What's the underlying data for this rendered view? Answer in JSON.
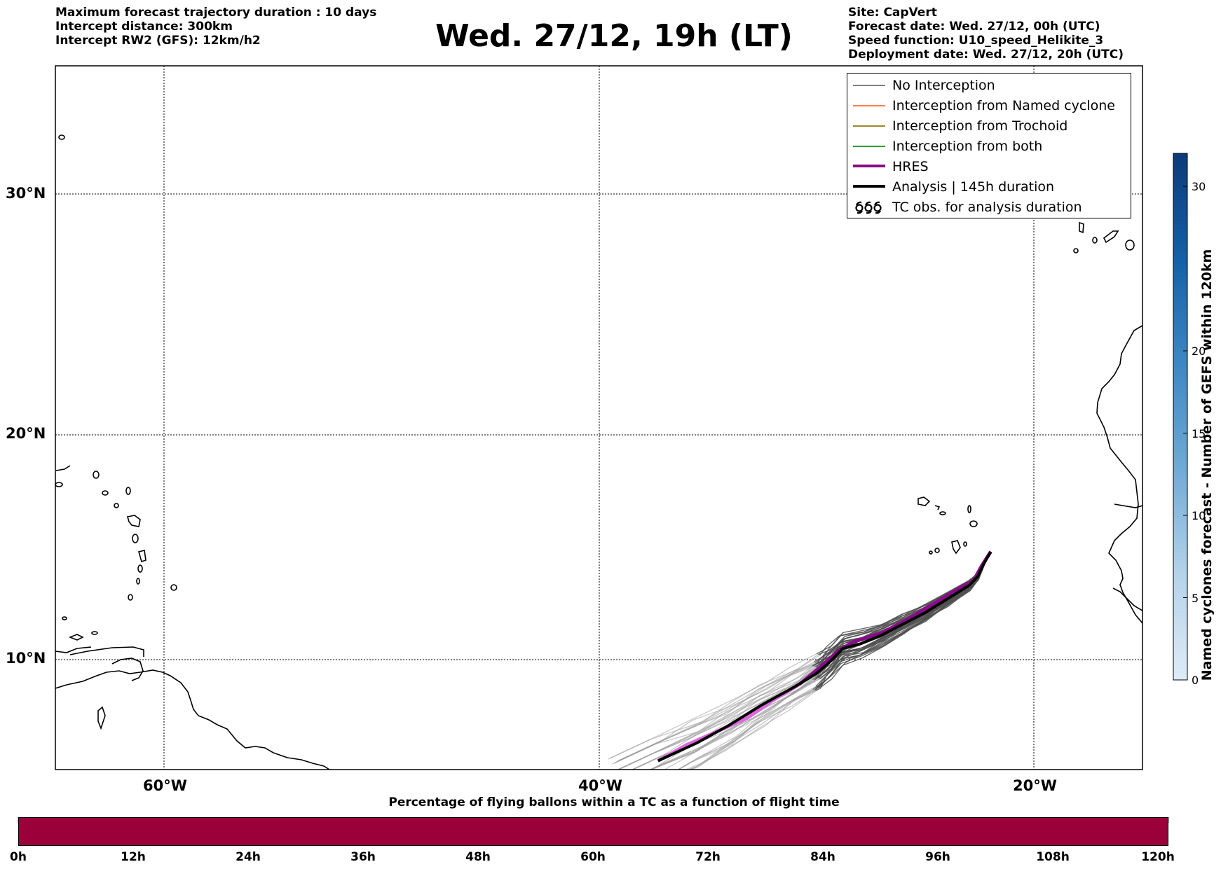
{
  "header_left": [
    "Maximum forecast trajectory duration : 10 days",
    "Intercept distance: 300km",
    "Intercept RW2 (GFS):  12km/h2"
  ],
  "title": "Wed. 27/12, 19h (LT)",
  "header_right": [
    "Site: CapVert",
    "Forecast date: Wed. 27/12, 00h (UTC)",
    "Speed function: U10_speed_Helikite_3",
    "Deployment date: Wed. 27/12, 20h (UTC)"
  ],
  "legend": [
    {
      "label": "No Interception",
      "color": "#808080",
      "kind": "thin"
    },
    {
      "label": "Interception from Named cyclone",
      "color": "#ff7f50",
      "kind": "thin"
    },
    {
      "label": "Interception from Trochoid",
      "color": "#9a8a2a",
      "kind": "thin"
    },
    {
      "label": "Interception from both",
      "color": "#2ca02c",
      "kind": "thin"
    },
    {
      "label": "HRES",
      "color": "#8b0a8b",
      "kind": "thick"
    },
    {
      "label": "Analysis | 145h duration",
      "color": "#000000",
      "kind": "thick"
    },
    {
      "label": "TC obs. for analysis duration",
      "color": "#000000",
      "kind": "tc"
    }
  ],
  "map": {
    "lat_labels": [
      "30°N",
      "20°N",
      "10°N"
    ],
    "lon_labels": [
      "60°W",
      "40°W",
      "20°W"
    ],
    "lon_range": [
      -65,
      -15
    ],
    "lat_range": [
      5.5,
      35
    ]
  },
  "colorbar": {
    "label": "Named cyclones forecast - Number of GEFS within 120km",
    "ticks": [
      "0",
      "5",
      "10",
      "15",
      "20",
      "30"
    ],
    "tick_values": [
      0,
      5,
      10,
      15,
      20,
      30
    ],
    "max": 32
  },
  "bottom_bar": {
    "title": "Percentage of flying ballons within a TC as a function of flight time",
    "ticks": [
      "0h",
      "12h",
      "24h",
      "36h",
      "48h",
      "60h",
      "72h",
      "84h",
      "96h",
      "108h",
      "120h"
    ],
    "color": "#9b003a"
  },
  "trajectories": {
    "analysis": [
      [
        -22.0,
        14.8
      ],
      [
        -22.3,
        14.3
      ],
      [
        -22.6,
        13.7
      ],
      [
        -23.0,
        13.3
      ],
      [
        -24.0,
        12.7
      ],
      [
        -25.0,
        12.1
      ],
      [
        -26.0,
        11.6
      ],
      [
        -27.0,
        11.1
      ],
      [
        -28.0,
        10.7
      ],
      [
        -28.8,
        10.5
      ],
      [
        -29.4,
        9.9
      ],
      [
        -30.0,
        9.4
      ],
      [
        -31.0,
        8.8
      ],
      [
        -32.5,
        8.0
      ],
      [
        -34.0,
        7.1
      ],
      [
        -35.5,
        6.3
      ],
      [
        -37.3,
        5.5
      ]
    ],
    "hres": [
      [
        -22.0,
        14.8
      ],
      [
        -22.4,
        14.2
      ],
      [
        -22.8,
        13.5
      ],
      [
        -23.4,
        13.2
      ],
      [
        -24.6,
        12.5
      ],
      [
        -25.8,
        11.8
      ],
      [
        -27.0,
        11.2
      ],
      [
        -28.3,
        10.8
      ],
      [
        -29.0,
        10.4
      ],
      [
        -29.8,
        9.7
      ],
      [
        -30.8,
        8.9
      ],
      [
        -32.0,
        8.2
      ],
      [
        -33.2,
        7.4
      ],
      [
        -34.6,
        6.8
      ],
      [
        -36.0,
        6.2
      ],
      [
        -37.3,
        5.5
      ]
    ]
  }
}
